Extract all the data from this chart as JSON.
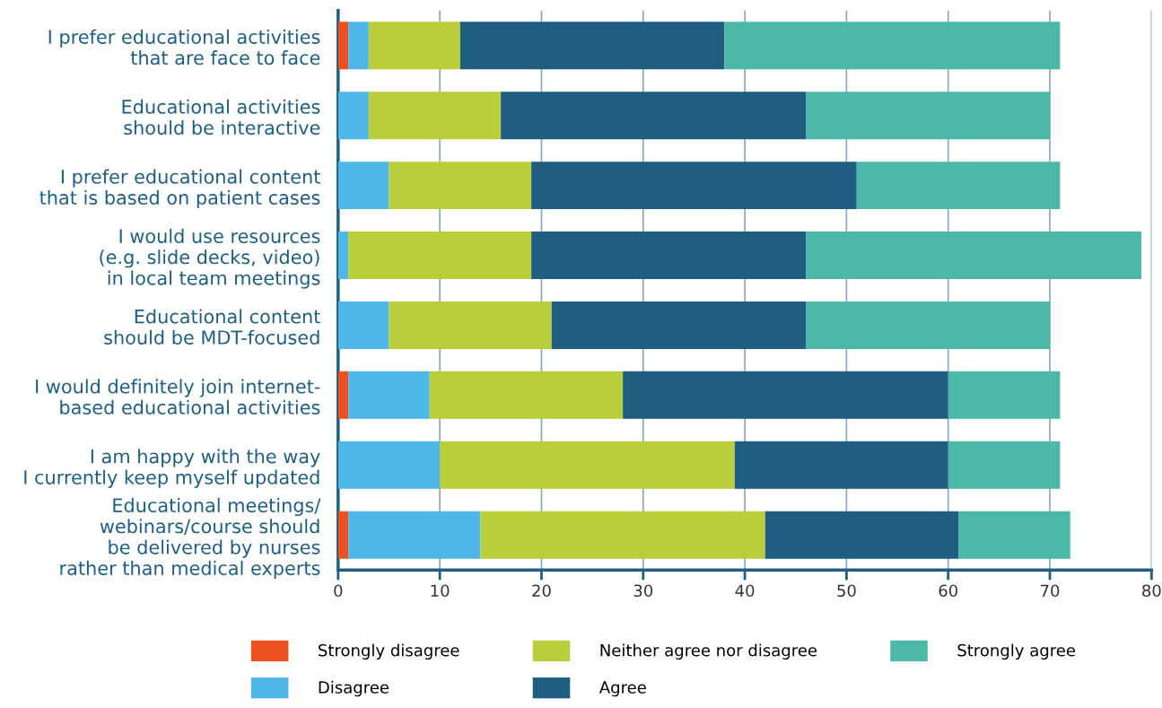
{
  "chart_data": {
    "type": "bar",
    "orientation": "horizontal",
    "stacked": true,
    "categories": [
      "I prefer educational activities\nthat are face to face",
      "Educational activities\nshould be interactive",
      "I prefer educational content\nthat is based on patient cases",
      "I would use resources\n(e.g. slide decks, video)\nin local team meetings",
      "Educational content\nshould be MDT-focused",
      "I would definitely join internet-\nbased educational activities",
      "I am happy with the way\nI currently keep myself updated",
      "Educational meetings/\nwebinars/course should\nbe delivered by nurses\nrather than medical experts"
    ],
    "series": [
      {
        "name": "Strongly disagree",
        "color": "#ee5120",
        "values": [
          1,
          0,
          0,
          0,
          0,
          1,
          0,
          1
        ]
      },
      {
        "name": "Disagree",
        "color": "#4fb7e8",
        "values": [
          2,
          3,
          5,
          1,
          5,
          8,
          10,
          13
        ]
      },
      {
        "name": "Neither agree nor disagree",
        "color": "#b8cf3b",
        "values": [
          9,
          13,
          14,
          18,
          16,
          19,
          29,
          28
        ]
      },
      {
        "name": "Agree",
        "color": "#1f5e80",
        "values": [
          26,
          30,
          32,
          27,
          25,
          32,
          21,
          19
        ]
      },
      {
        "name": "Strongly agree",
        "color": "#4bb8a8",
        "values": [
          33,
          24,
          20,
          33,
          24,
          11,
          11,
          11
        ]
      }
    ],
    "xlim": [
      0,
      80
    ],
    "xticks": [
      0,
      10,
      20,
      30,
      40,
      50,
      60,
      70,
      80
    ],
    "grid": "x",
    "legend": "bottom"
  }
}
